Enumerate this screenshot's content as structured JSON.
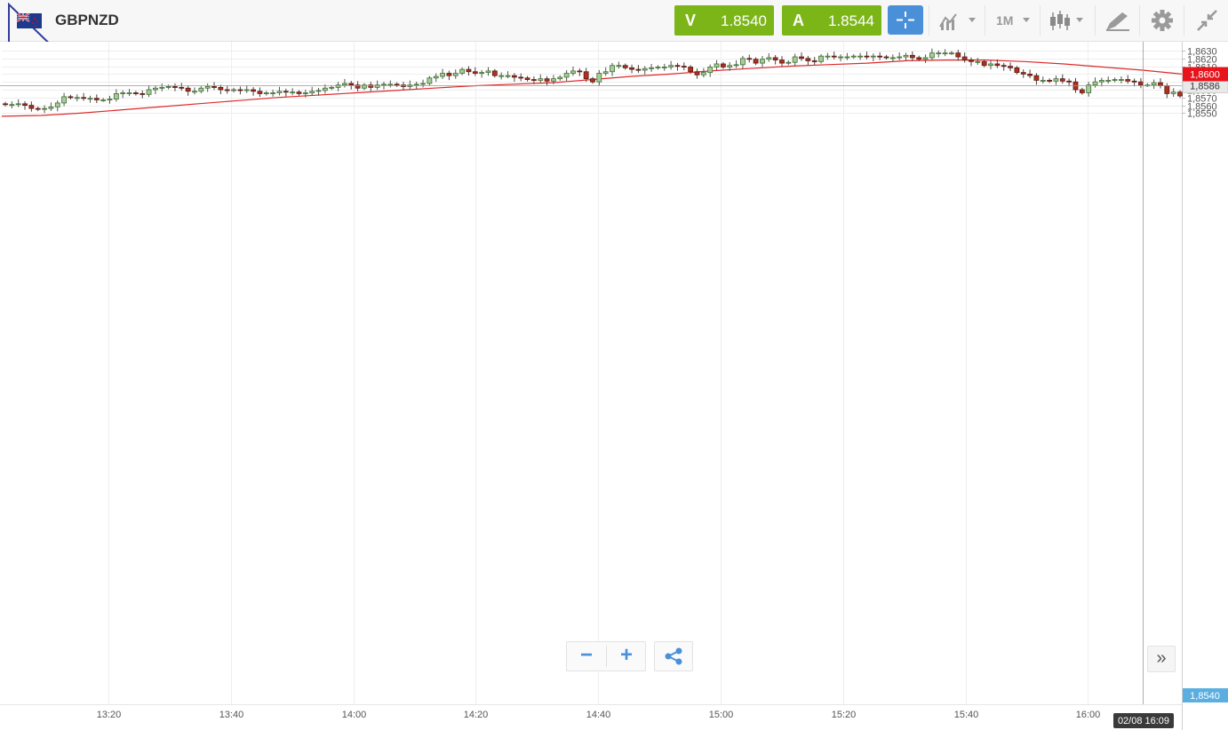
{
  "instrument": {
    "symbol": "GBPNZD",
    "flag_icon": "uk-nz-flag-icon"
  },
  "quotes": {
    "sell_label": "V",
    "sell_value": "1.8540",
    "buy_label": "A",
    "buy_value": "1.8544",
    "button_color": "#7cb518"
  },
  "toolbar": {
    "crosshair_icon": "crosshair-icon",
    "indicators_icon": "indicators-icon",
    "period_label": "1M",
    "chart_type_icon": "candlestick-icon",
    "drawing_icon": "drawing-tools-icon",
    "settings_icon": "gear-icon",
    "collapse_icon": "collapse-icon",
    "accent_color": "#4a90d9"
  },
  "controls": {
    "zoom_out_label": "−",
    "zoom_in_label": "+",
    "share_icon": "share-icon",
    "scroll_end_label": "»"
  },
  "chart_data": {
    "type": "candlestick",
    "instrument": "GBPNZD",
    "timeframe": "1M",
    "y_axis": {
      "ylim": [
        1.8545,
        1.8631
      ],
      "ticks": [
        "1,8550",
        "1,8560",
        "1,8570",
        "1,8580",
        "1,8590",
        "1,8600",
        "1,8610",
        "1,8620",
        "1,8630"
      ]
    },
    "x_axis": {
      "ticks": [
        "13:20",
        "13:40",
        "14:00",
        "14:20",
        "14:40",
        "15:00",
        "15:20",
        "15:40",
        "16:00"
      ]
    },
    "current_price_label": "1,8586",
    "current_price": 1.8586,
    "moving_average_label": "1,8600",
    "moving_average_value": 1.86,
    "bid_price_label": "1,8540",
    "crosshair_date_label": "02/08 16:09",
    "colors": {
      "bull": "#6fa85b",
      "bull_body": "#a6cc9a",
      "bear": "#b03020",
      "ma_line": "#dd2a2a",
      "ma_label_bg": "#e8141c",
      "bid_label_bg": "#5aafe0",
      "price_label_bg": "#e9e9e9"
    },
    "closes": [
      1.8561,
      1.8561,
      1.8562,
      1.856,
      1.8556,
      1.8555,
      1.8556,
      1.8558,
      1.8563,
      1.8571,
      1.857,
      1.857,
      1.8569,
      1.8569,
      1.8567,
      1.8567,
      1.8568,
      1.8575,
      1.8576,
      1.8576,
      1.8575,
      1.8574,
      1.858,
      1.8582,
      1.8583,
      1.8584,
      1.8583,
      1.8582,
      1.8578,
      1.8578,
      1.8582,
      1.8584,
      1.8583,
      1.858,
      1.8579,
      1.858,
      1.8579,
      1.858,
      1.8578,
      1.8575,
      1.8576,
      1.8576,
      1.8578,
      1.8577,
      1.8577,
      1.8575,
      1.8576,
      1.8578,
      1.8579,
      1.8582,
      1.8583,
      1.8586,
      1.8588,
      1.8586,
      1.8582,
      1.8586,
      1.8583,
      1.8586,
      1.8587,
      1.8587,
      1.8586,
      1.8584,
      1.8586,
      1.8587,
      1.8588,
      1.8595,
      1.8597,
      1.8601,
      1.8598,
      1.8601,
      1.8606,
      1.8603,
      1.8601,
      1.8602,
      1.8604,
      1.8598,
      1.8598,
      1.8598,
      1.8596,
      1.8595,
      1.8593,
      1.8592,
      1.8594,
      1.8591,
      1.8594,
      1.8596,
      1.8601,
      1.8604,
      1.8603,
      1.8594,
      1.859,
      1.8601,
      1.8603,
      1.8611,
      1.8611,
      1.8608,
      1.8606,
      1.8605,
      1.8607,
      1.8608,
      1.8609,
      1.8609,
      1.8611,
      1.861,
      1.8609,
      1.8603,
      1.8599,
      1.8602,
      1.8609,
      1.8613,
      1.8609,
      1.8611,
      1.8612,
      1.862,
      1.8619,
      1.8614,
      1.8619,
      1.8621,
      1.8618,
      1.8614,
      1.8615,
      1.8622,
      1.862,
      1.8617,
      1.8616,
      1.8623,
      1.8623,
      1.8622,
      1.8622,
      1.8622,
      1.8623,
      1.8623,
      1.8622,
      1.8623,
      1.8622,
      1.8621,
      1.8621,
      1.8622,
      1.8624,
      1.8621,
      1.8619,
      1.8621,
      1.8627,
      1.8627,
      1.8627,
      1.8627,
      1.8622,
      1.8618,
      1.8616,
      1.8616,
      1.8611,
      1.8613,
      1.8611,
      1.861,
      1.8608,
      1.8602,
      1.86,
      1.8598,
      1.8592,
      1.8592,
      1.8591,
      1.8594,
      1.8591,
      1.859,
      1.858,
      1.8576,
      1.8586,
      1.859,
      1.8592,
      1.8592,
      1.8593,
      1.8593,
      1.8591,
      1.859,
      1.8586,
      1.8586,
      1.8589,
      1.8585,
      1.8575,
      1.8577,
      1.8572
    ],
    "moving_average": [
      1.8546,
      1.8547,
      1.855,
      1.8554,
      1.8558,
      1.8562,
      1.8566,
      1.857,
      1.8573,
      1.8576,
      1.8579,
      1.8582,
      1.8585,
      1.8587,
      1.8589,
      1.8593,
      1.8597,
      1.86,
      1.8604,
      1.8607,
      1.861,
      1.8612,
      1.8614,
      1.8617,
      1.8618,
      1.8618,
      1.8616,
      1.8613,
      1.8609,
      1.8605,
      1.86
    ]
  }
}
